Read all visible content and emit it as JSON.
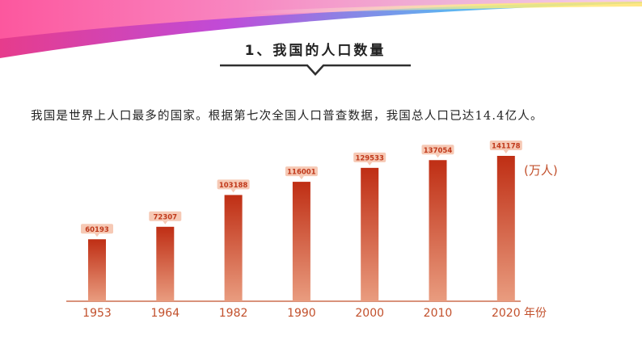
{
  "section_title": "1、我国的人口数量",
  "description": "我国是世界上人口最多的国家。根据第七次全国人口普查数据，我国总人口已达14.4亿人。",
  "colors": {
    "bar_top": "#bf2e14",
    "bar_bottom": "#e99c7f",
    "label_bg": "#f6c9b5",
    "label_text": "#c0391b",
    "axis": "#c2502c"
  },
  "chart_data": {
    "type": "bar",
    "categories": [
      "1953",
      "1964",
      "1982",
      "1990",
      "2000",
      "2010",
      "2020"
    ],
    "values": [
      60193,
      72307,
      103188,
      116001,
      129533,
      137054,
      141178
    ],
    "ylabel": "(万人)",
    "xlabel": "年份",
    "ylim": [
      0,
      141178
    ],
    "grid": false,
    "data_labels": true
  }
}
